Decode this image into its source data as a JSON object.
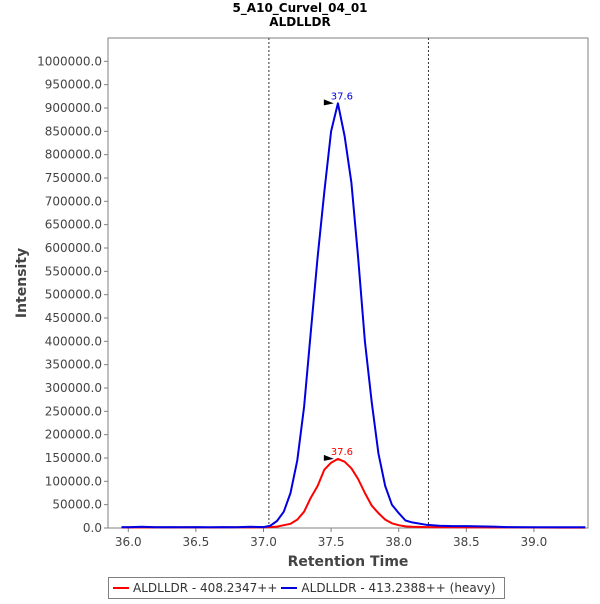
{
  "chart_data": {
    "type": "line",
    "title": "5_A10_Curvel_04_01",
    "subtitle": "ALDLLDR",
    "xlabel": "Retention Time",
    "ylabel": "Intensity",
    "xlim": [
      35.85,
      39.4
    ],
    "ylim": [
      0,
      1050000
    ],
    "x_ticks": [
      "36.0",
      "36.5",
      "37.0",
      "37.5",
      "38.0",
      "38.5",
      "39.0"
    ],
    "y_ticks": [
      "0.0",
      "50000.0",
      "100000.0",
      "150000.0",
      "200000.0",
      "250000.0",
      "300000.0",
      "350000.0",
      "400000.0",
      "450000.0",
      "500000.0",
      "550000.0",
      "600000.0",
      "650000.0",
      "700000.0",
      "750000.0",
      "800000.0",
      "850000.0",
      "900000.0",
      "950000.0",
      "1000000.0"
    ],
    "grid": false,
    "legend_position": "bottom",
    "integration_bounds": [
      37.04,
      38.22
    ],
    "series": [
      {
        "name": "ALDLLDR - 408.2347++",
        "color": "#ff0000",
        "peak_label": "37.6",
        "x": [
          35.95,
          36.0,
          36.1,
          36.2,
          36.3,
          36.4,
          36.5,
          36.6,
          36.7,
          36.8,
          36.9,
          37.0,
          37.05,
          37.1,
          37.15,
          37.2,
          37.25,
          37.3,
          37.35,
          37.4,
          37.45,
          37.5,
          37.55,
          37.6,
          37.65,
          37.7,
          37.75,
          37.8,
          37.85,
          37.9,
          37.95,
          38.0,
          38.05,
          38.1,
          38.2,
          38.3,
          38.4,
          38.5,
          38.6,
          38.7,
          38.8,
          39.0,
          39.2,
          39.38
        ],
        "y": [
          1000,
          1500,
          1200,
          1800,
          1000,
          1500,
          1200,
          1000,
          1300,
          1500,
          1200,
          1500,
          2000,
          3000,
          6000,
          9000,
          18000,
          35000,
          65000,
          90000,
          125000,
          140000,
          148000,
          142000,
          128000,
          105000,
          75000,
          48000,
          32000,
          18000,
          10000,
          6000,
          3500,
          2500,
          2000,
          1500,
          1800,
          1200,
          1500,
          1000,
          1200,
          1000,
          800,
          800
        ]
      },
      {
        "name": "ALDLLDR - 413.2388++ (heavy)",
        "color": "#0000e0",
        "peak_label": "37.6",
        "x": [
          35.95,
          36.0,
          36.1,
          36.2,
          36.3,
          36.4,
          36.5,
          36.6,
          36.7,
          36.8,
          36.9,
          37.0,
          37.05,
          37.1,
          37.15,
          37.2,
          37.25,
          37.3,
          37.35,
          37.4,
          37.45,
          37.5,
          37.55,
          37.6,
          37.65,
          37.7,
          37.75,
          37.8,
          37.85,
          37.9,
          37.95,
          38.0,
          38.05,
          38.1,
          38.2,
          38.3,
          38.4,
          38.5,
          38.6,
          38.7,
          38.8,
          39.0,
          39.2,
          39.38
        ],
        "y": [
          2000,
          1500,
          2500,
          1500,
          2000,
          1500,
          2000,
          1500,
          2000,
          1500,
          2500,
          2000,
          5000,
          15000,
          35000,
          75000,
          145000,
          260000,
          420000,
          580000,
          720000,
          850000,
          910000,
          840000,
          740000,
          580000,
          400000,
          270000,
          160000,
          90000,
          50000,
          32000,
          16000,
          12000,
          7000,
          5000,
          4000,
          4000,
          3500,
          3000,
          2000,
          1500,
          1500,
          1500
        ]
      }
    ]
  }
}
